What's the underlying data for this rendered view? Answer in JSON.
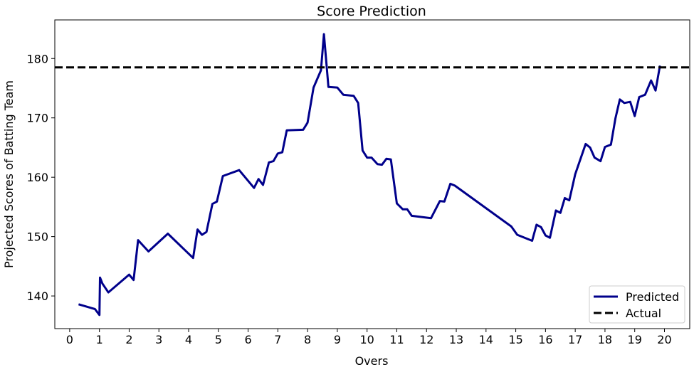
{
  "chart_data": {
    "type": "line",
    "title": "Score Prediction",
    "xlabel": "Overs",
    "ylabel": "Projected Scores of Batting Team",
    "xlim": [
      -0.5,
      20.85
    ],
    "ylim": [
      134.5,
      186.5
    ],
    "xticks": [
      0,
      1,
      2,
      3,
      4,
      5,
      6,
      7,
      8,
      9,
      10,
      11,
      12,
      13,
      14,
      15,
      16,
      17,
      18,
      19,
      20
    ],
    "yticks": [
      140,
      150,
      160,
      170,
      180
    ],
    "grid": false,
    "legend_position": "bottom-right",
    "series": [
      {
        "name": "Predicted",
        "style": "solid",
        "color": "#00008b",
        "x": [
          0.3,
          0.85,
          1.0,
          1.02,
          1.1,
          1.3,
          2.0,
          2.15,
          2.3,
          2.65,
          3.3,
          4.15,
          4.3,
          4.45,
          4.6,
          4.8,
          4.95,
          5.15,
          5.7,
          6.2,
          6.35,
          6.5,
          6.7,
          6.85,
          7.0,
          7.15,
          7.3,
          7.85,
          8.0,
          8.2,
          8.45,
          8.55,
          8.7,
          9.0,
          9.2,
          9.55,
          9.7,
          9.85,
          10.0,
          10.15,
          10.35,
          10.5,
          10.65,
          10.8,
          11.0,
          11.2,
          11.35,
          11.5,
          12.15,
          12.45,
          12.6,
          12.8,
          12.95,
          14.85,
          15.05,
          15.55,
          15.7,
          15.85,
          16.0,
          16.15,
          16.35,
          16.5,
          16.65,
          16.8,
          17.0,
          17.35,
          17.5,
          17.65,
          17.85,
          18.0,
          18.2,
          18.35,
          18.5,
          18.65,
          18.85,
          19.0,
          19.15,
          19.35,
          19.55,
          19.7,
          19.85
        ],
        "y": [
          138.6,
          137.8,
          136.8,
          143.1,
          142.1,
          140.6,
          143.6,
          142.7,
          149.4,
          147.5,
          150.5,
          146.4,
          151.2,
          150.3,
          150.8,
          155.5,
          155.9,
          160.2,
          161.2,
          158.2,
          159.7,
          158.7,
          162.5,
          162.7,
          164.0,
          164.2,
          167.9,
          168.0,
          169.2,
          175.1,
          178.0,
          184.1,
          175.2,
          175.1,
          173.9,
          173.7,
          172.5,
          164.5,
          163.3,
          163.3,
          162.2,
          162.1,
          163.1,
          163.0,
          155.6,
          154.6,
          154.6,
          153.5,
          153.1,
          156.0,
          155.9,
          158.9,
          158.6,
          151.7,
          150.3,
          149.3,
          152.0,
          151.6,
          150.2,
          149.8,
          154.4,
          154.0,
          156.5,
          156.1,
          160.5,
          165.6,
          165.0,
          163.3,
          162.7,
          165.1,
          165.5,
          169.9,
          173.1,
          172.5,
          172.7,
          170.3,
          173.5,
          173.9,
          176.3,
          174.6,
          178.8
        ]
      },
      {
        "name": "Actual",
        "style": "dashed",
        "color": "#000000",
        "y_constant": 178.5
      }
    ]
  }
}
